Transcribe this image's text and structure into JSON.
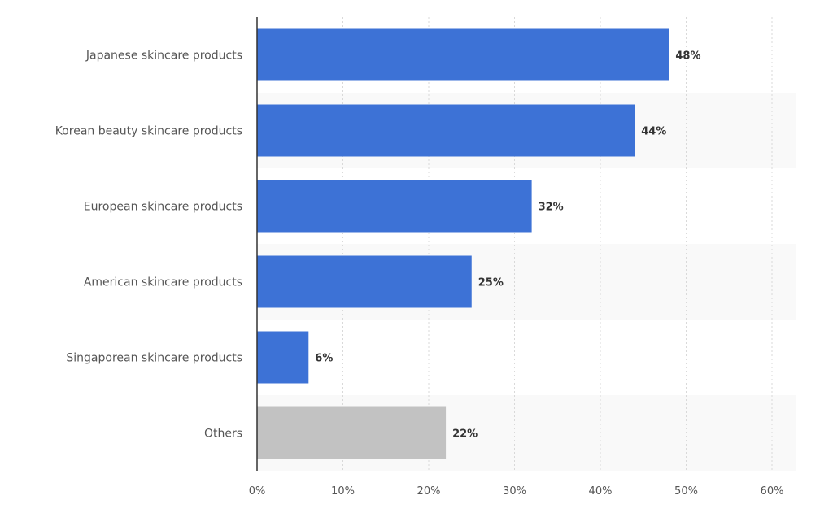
{
  "chart_data": {
    "type": "bar",
    "orientation": "horizontal",
    "categories": [
      "Japanese skincare products",
      "Korean beauty skincare products",
      "European skincare products",
      "American skincare products",
      "Singaporean skincare products",
      "Others"
    ],
    "values": [
      48,
      44,
      32,
      25,
      6,
      22
    ],
    "value_labels": [
      "48%",
      "44%",
      "32%",
      "25%",
      "6%",
      "22%"
    ],
    "xlim": [
      0,
      60
    ],
    "x_ticks": [
      0,
      10,
      20,
      30,
      40,
      50,
      60
    ],
    "x_tick_labels": [
      "0%",
      "10%",
      "20%",
      "30%",
      "40%",
      "50%",
      "60%"
    ],
    "grid": "vertical dotted",
    "colors": {
      "bar": "#3d72d6",
      "bar_others": "#c2c2c2",
      "band_alt": "#f9f9f9",
      "grid": "#d9d9d9",
      "axis": "#333333"
    }
  }
}
